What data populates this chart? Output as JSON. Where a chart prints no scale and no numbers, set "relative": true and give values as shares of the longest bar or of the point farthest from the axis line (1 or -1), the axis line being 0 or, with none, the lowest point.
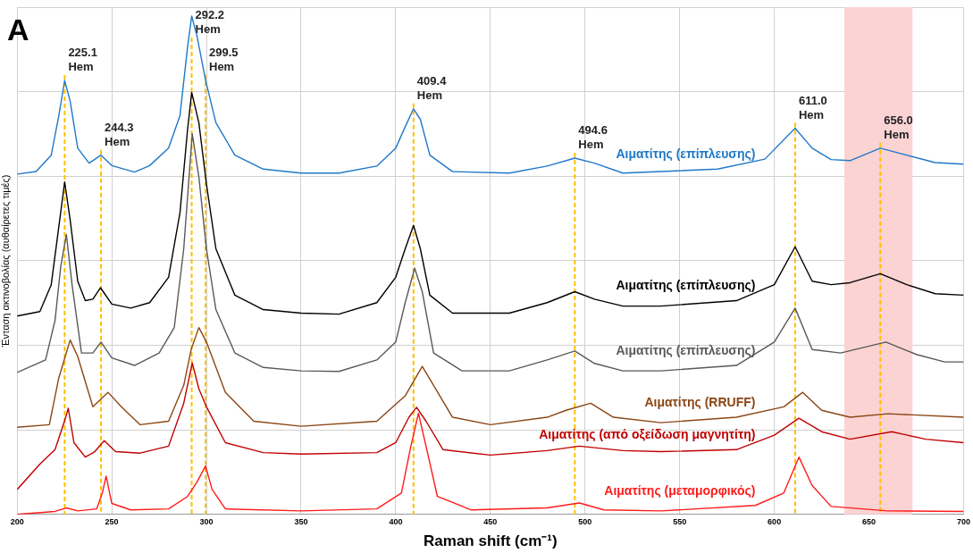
{
  "chart_data": {
    "type": "line",
    "title": "A",
    "xlabel": "Raman shift (cm⁻¹)",
    "ylabel": "Ένταση ακτινοβολίας (αυθαίρετες τιμές)",
    "relative": true,
    "xlim": [
      200,
      700
    ],
    "xticks": [
      200,
      250,
      300,
      350,
      400,
      450,
      500,
      550,
      600,
      650,
      700
    ],
    "grid": true,
    "legend": false,
    "marker": "none",
    "line_style": "solid",
    "series": [
      {
        "name": "Αιματίτης (επίπλευσης)",
        "color": "#1f78c8",
        "x": [
          200,
          210,
          218,
          222,
          225.1,
          228,
          232,
          238,
          244.3,
          250,
          262,
          270,
          280,
          286,
          290,
          292.2,
          295,
          299.5,
          305,
          315,
          330,
          350,
          370,
          390,
          400,
          405,
          409.4,
          413,
          418,
          430,
          460,
          480,
          494.6,
          505,
          520,
          540,
          570,
          595,
          611,
          620,
          630,
          640,
          656,
          670,
          685,
          700
        ],
        "values": [
          0.683,
          0.688,
          0.721,
          0.8,
          0.871,
          0.829,
          0.735,
          0.705,
          0.721,
          0.7,
          0.687,
          0.7,
          0.735,
          0.8,
          0.937,
          1,
          0.96,
          0.872,
          0.786,
          0.721,
          0.693,
          0.685,
          0.685,
          0.699,
          0.735,
          0.778,
          0.814,
          0.793,
          0.721,
          0.688,
          0.685,
          0.699,
          0.715,
          0.705,
          0.685,
          0.688,
          0.693,
          0.713,
          0.775,
          0.735,
          0.712,
          0.71,
          0.735,
          0.721,
          0.706,
          0.703
        ]
      },
      {
        "name": "Αιματίτης (επίπλευσης)",
        "color": "#000000",
        "x": [
          200,
          212,
          218,
          221,
          225.1,
          228,
          232,
          236,
          240,
          244,
          250,
          260,
          270,
          280,
          286,
          290,
          292.2,
          296,
          300,
          305,
          315,
          330,
          350,
          370,
          390,
          400,
          405,
          409.4,
          413,
          418,
          430,
          460,
          480,
          494.6,
          505,
          520,
          540,
          580,
          600,
          611,
          620,
          630,
          640,
          656,
          670,
          685,
          700
        ],
        "values": [
          0.398,
          0.407,
          0.461,
          0.548,
          0.667,
          0.591,
          0.468,
          0.429,
          0.432,
          0.455,
          0.422,
          0.414,
          0.425,
          0.476,
          0.605,
          0.771,
          0.847,
          0.786,
          0.663,
          0.533,
          0.44,
          0.411,
          0.404,
          0.402,
          0.425,
          0.476,
          0.533,
          0.58,
          0.533,
          0.44,
          0.404,
          0.404,
          0.425,
          0.447,
          0.432,
          0.418,
          0.418,
          0.429,
          0.461,
          0.537,
          0.468,
          0.461,
          0.465,
          0.483,
          0.461,
          0.443,
          0.44
        ]
      },
      {
        "name": "Αιματίτης (επίπλευσης)",
        "color": "#595959",
        "x": [
          200,
          215,
          220,
          223,
          226,
          229,
          234,
          240,
          244.3,
          250,
          262,
          275,
          283,
          288,
          292.5,
          296,
          300,
          305,
          315,
          330,
          350,
          370,
          390,
          400,
          405,
          410,
          414,
          420,
          435,
          460,
          480,
          494.6,
          505,
          520,
          540,
          580,
          600,
          611,
          620,
          635,
          659,
          675,
          690,
          700
        ],
        "values": [
          0.285,
          0.31,
          0.389,
          0.497,
          0.562,
          0.461,
          0.324,
          0.324,
          0.346,
          0.314,
          0.299,
          0.324,
          0.375,
          0.533,
          0.764,
          0.677,
          0.533,
          0.411,
          0.324,
          0.295,
          0.288,
          0.287,
          0.31,
          0.346,
          0.425,
          0.494,
          0.447,
          0.324,
          0.288,
          0.288,
          0.31,
          0.328,
          0.303,
          0.288,
          0.288,
          0.299,
          0.346,
          0.414,
          0.331,
          0.324,
          0.346,
          0.321,
          0.306,
          0.306
        ]
      },
      {
        "name": "Αιματίτης (RRUFF)",
        "color": "#8b4513",
        "x": [
          200,
          217,
          222,
          228,
          232,
          240,
          248,
          255,
          265,
          280,
          288,
          292,
          296,
          300,
          310,
          325,
          350,
          390,
          405,
          414,
          420,
          430,
          450,
          480,
          490,
          503,
          515,
          540,
          580,
          605,
          615,
          625,
          640,
          660,
          700
        ],
        "values": [
          0.175,
          0.18,
          0.274,
          0.35,
          0.317,
          0.216,
          0.245,
          0.216,
          0.18,
          0.187,
          0.259,
          0.332,
          0.375,
          0.346,
          0.245,
          0.187,
          0.177,
          0.187,
          0.238,
          0.297,
          0.259,
          0.195,
          0.18,
          0.195,
          0.209,
          0.223,
          0.195,
          0.184,
          0.195,
          0.216,
          0.245,
          0.209,
          0.195,
          0.202,
          0.195
        ]
      },
      {
        "name": "Αιματίτης (από οξείδωση μαγνητίτη)",
        "color": "#c00000",
        "x": [
          200,
          212,
          220,
          225,
          227,
          230,
          236,
          241,
          246,
          252,
          265,
          280,
          288,
          292.5,
          296,
          300,
          310,
          330,
          350,
          390,
          400,
          407,
          411,
          416,
          425,
          450,
          480,
          497,
          520,
          540,
          580,
          600,
          613,
          625,
          640,
          662,
          680,
          700
        ],
        "values": [
          0.05,
          0.101,
          0.13,
          0.187,
          0.213,
          0.144,
          0.115,
          0.126,
          0.148,
          0.126,
          0.123,
          0.137,
          0.223,
          0.304,
          0.252,
          0.216,
          0.144,
          0.124,
          0.121,
          0.124,
          0.144,
          0.195,
          0.215,
          0.187,
          0.13,
          0.119,
          0.128,
          0.137,
          0.128,
          0.126,
          0.13,
          0.159,
          0.193,
          0.166,
          0.151,
          0.166,
          0.151,
          0.144
        ]
      },
      {
        "name": "Αιματίτης (μεταμορφικός)",
        "color": "#ff1a1a",
        "x": [
          200,
          220,
          226,
          232,
          242,
          245,
          247,
          250,
          260,
          280,
          290,
          295,
          299.5,
          303,
          310,
          350,
          390,
          403,
          408,
          412,
          416,
          422,
          440,
          480,
          497,
          510,
          540,
          590,
          605,
          613,
          620,
          630,
          660,
          700
        ],
        "values": [
          0,
          0.006,
          0.013,
          0.007,
          0.011,
          0.043,
          0.077,
          0.022,
          0.009,
          0.011,
          0.036,
          0.065,
          0.097,
          0.05,
          0.011,
          0.007,
          0.011,
          0.043,
          0.137,
          0.203,
          0.137,
          0.036,
          0.009,
          0.013,
          0.023,
          0.009,
          0.007,
          0.018,
          0.043,
          0.115,
          0.058,
          0.016,
          0.007,
          0.006
        ]
      }
    ],
    "ref_lines": [
      {
        "axis": "x",
        "value": 225.1,
        "label": "225.1 Hem",
        "color": "#ffc000",
        "line_style": "dashed"
      },
      {
        "axis": "x",
        "value": 244.3,
        "label": "244.3 Hem",
        "color": "#ffc000",
        "line_style": "dashed"
      },
      {
        "axis": "x",
        "value": 292.2,
        "label": "292.2 Hem",
        "color": "#ffc000",
        "line_style": "dashed"
      },
      {
        "axis": "x",
        "value": 299.5,
        "label": "299.5 Hem",
        "color": "#ffc000",
        "line_style": "dashed"
      },
      {
        "axis": "x",
        "value": 409.4,
        "label": "409.4 Hem",
        "color": "#ffc000",
        "line_style": "dashed"
      },
      {
        "axis": "x",
        "value": 494.6,
        "label": "494.6 Hem",
        "color": "#ffc000",
        "line_style": "dashed"
      },
      {
        "axis": "x",
        "value": 611.0,
        "label": "611.0 Hem",
        "color": "#ffc000",
        "line_style": "dashed"
      },
      {
        "axis": "x",
        "value": 656.0,
        "label": "656.0 Hem",
        "color": "#ffc000",
        "line_style": "dashed"
      }
    ],
    "bands": [
      {
        "axis": "x",
        "from": 637,
        "to": 673,
        "color": "#fbd3d3"
      }
    ]
  }
}
